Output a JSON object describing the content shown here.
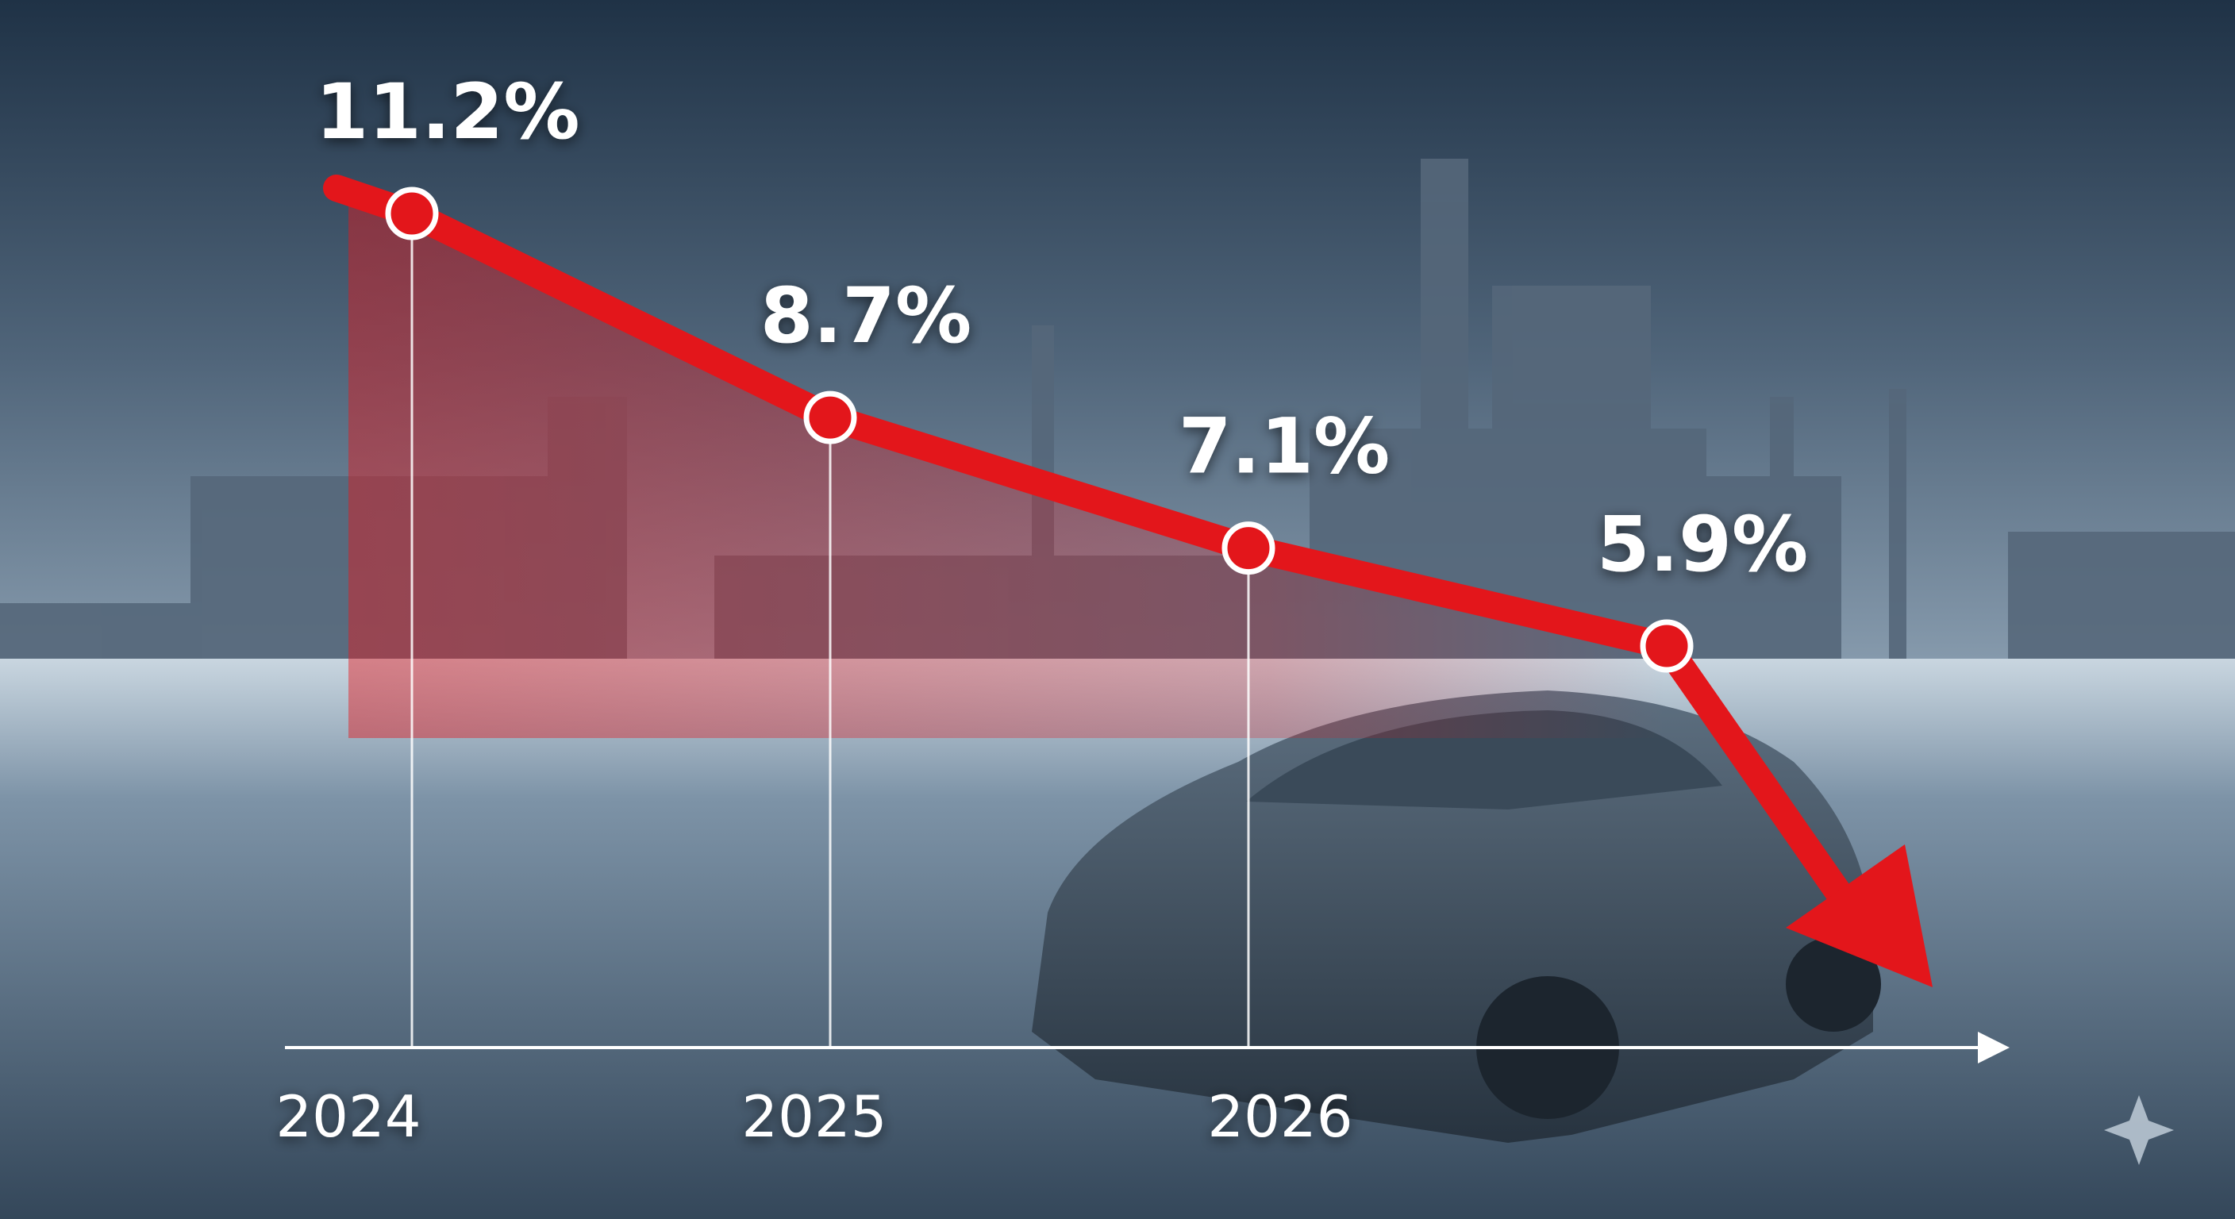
{
  "chart_data": {
    "type": "line",
    "categories": [
      "2024",
      "2025",
      "2026",
      null
    ],
    "series": [
      {
        "color": "#e3161b",
        "values": [
          11.2,
          8.7,
          7.1,
          5.9
        ],
        "value_labels": [
          "11.2%",
          "8.7%",
          "7.1%",
          "5.9%"
        ]
      }
    ]
  }
}
